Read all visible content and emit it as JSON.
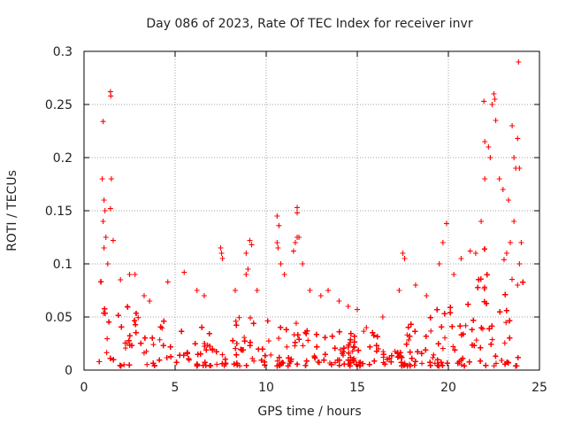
{
  "chart_data": {
    "type": "scatter",
    "title": "Day 086 of 2023, Rate Of TEC Index for receiver invr",
    "xlabel": "GPS time / hours",
    "ylabel": "ROTI / TECUs",
    "xlim": [
      0,
      25
    ],
    "ylim": [
      0,
      0.3
    ],
    "xticks": [
      0,
      5,
      10,
      15,
      20,
      25
    ],
    "yticks": [
      0,
      0.05,
      0.1,
      0.15,
      0.2,
      0.25,
      0.3
    ],
    "xtick_labels": [
      "0",
      "5",
      "10",
      "15",
      "20",
      "25"
    ],
    "ytick_labels": [
      "0",
      "0.05",
      "0.1",
      "0.15",
      "0.2",
      "0.25",
      "0.3"
    ],
    "grid": true,
    "marker": "+",
    "color": "#ff0000",
    "series": [
      {
        "name": "ROTI",
        "points": [
          [
            1.05,
            0.234
          ],
          [
            1.45,
            0.262
          ],
          [
            1.47,
            0.258
          ],
          [
            1.0,
            0.18
          ],
          [
            1.5,
            0.18
          ],
          [
            1.1,
            0.16
          ],
          [
            1.15,
            0.15
          ],
          [
            1.45,
            0.152
          ],
          [
            1.05,
            0.14
          ],
          [
            1.2,
            0.125
          ],
          [
            1.6,
            0.122
          ],
          [
            1.1,
            0.115
          ],
          [
            1.3,
            0.1
          ],
          [
            2.0,
            0.085
          ],
          [
            2.5,
            0.09
          ],
          [
            2.8,
            0.09
          ],
          [
            3.3,
            0.07
          ],
          [
            3.6,
            0.065
          ],
          [
            4.6,
            0.083
          ],
          [
            5.5,
            0.092
          ],
          [
            6.2,
            0.075
          ],
          [
            6.6,
            0.07
          ],
          [
            7.5,
            0.115
          ],
          [
            7.55,
            0.11
          ],
          [
            7.6,
            0.105
          ],
          [
            8.3,
            0.075
          ],
          [
            8.9,
            0.11
          ],
          [
            9.1,
            0.122
          ],
          [
            9.2,
            0.118
          ],
          [
            9.0,
            0.095
          ],
          [
            8.9,
            0.09
          ],
          [
            9.5,
            0.075
          ],
          [
            10.6,
            0.145
          ],
          [
            10.7,
            0.136
          ],
          [
            10.6,
            0.12
          ],
          [
            10.65,
            0.115
          ],
          [
            10.8,
            0.1
          ],
          [
            11.0,
            0.09
          ],
          [
            11.5,
            0.112
          ],
          [
            11.6,
            0.12
          ],
          [
            11.7,
            0.125
          ],
          [
            11.7,
            0.153
          ],
          [
            11.7,
            0.148
          ],
          [
            11.8,
            0.125
          ],
          [
            12.0,
            0.1
          ],
          [
            12.4,
            0.075
          ],
          [
            13.0,
            0.07
          ],
          [
            13.4,
            0.075
          ],
          [
            14.0,
            0.065
          ],
          [
            14.5,
            0.06
          ],
          [
            15.0,
            0.057
          ],
          [
            15.5,
            0.04
          ],
          [
            16.4,
            0.05
          ],
          [
            17.3,
            0.075
          ],
          [
            17.5,
            0.11
          ],
          [
            17.6,
            0.105
          ],
          [
            18.2,
            0.08
          ],
          [
            18.8,
            0.07
          ],
          [
            19.5,
            0.1
          ],
          [
            19.7,
            0.12
          ],
          [
            19.9,
            0.138
          ],
          [
            20.3,
            0.09
          ],
          [
            20.7,
            0.105
          ],
          [
            21.2,
            0.112
          ],
          [
            21.5,
            0.11
          ],
          [
            21.8,
            0.14
          ],
          [
            22.0,
            0.18
          ],
          [
            22.0,
            0.215
          ],
          [
            22.2,
            0.21
          ],
          [
            22.3,
            0.2
          ],
          [
            22.4,
            0.25
          ],
          [
            22.5,
            0.26
          ],
          [
            22.55,
            0.255
          ],
          [
            22.6,
            0.235
          ],
          [
            21.95,
            0.253
          ],
          [
            22.8,
            0.18
          ],
          [
            23.0,
            0.17
          ],
          [
            23.3,
            0.16
          ],
          [
            23.5,
            0.23
          ],
          [
            23.6,
            0.2
          ],
          [
            23.7,
            0.19
          ],
          [
            23.8,
            0.218
          ],
          [
            23.85,
            0.29
          ],
          [
            23.9,
            0.19
          ],
          [
            23.6,
            0.14
          ],
          [
            23.4,
            0.12
          ],
          [
            23.2,
            0.11
          ],
          [
            24.0,
            0.12
          ],
          [
            23.9,
            0.1
          ],
          [
            23.8,
            0.08
          ]
        ]
      }
    ]
  }
}
